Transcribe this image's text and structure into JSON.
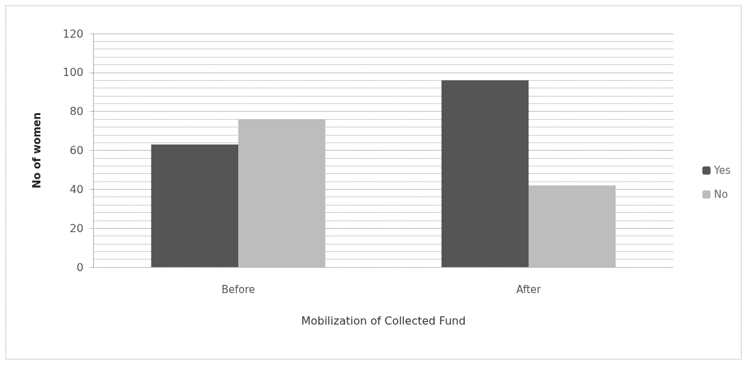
{
  "chart_data": {
    "type": "bar",
    "xlabel": "Mobilization of Collected Fund",
    "ylabel": "No of women",
    "categories": [
      "Before",
      "After"
    ],
    "series": [
      {
        "name": "Yes",
        "color": "#555555",
        "values": [
          63,
          96
        ]
      },
      {
        "name": "No",
        "color": "#bdbdbd",
        "values": [
          76,
          42
        ]
      }
    ],
    "ylim": [
      0,
      120
    ],
    "yticks": [
      0,
      20,
      40,
      60,
      80,
      100,
      120
    ],
    "grid": "y",
    "legend": "right"
  }
}
